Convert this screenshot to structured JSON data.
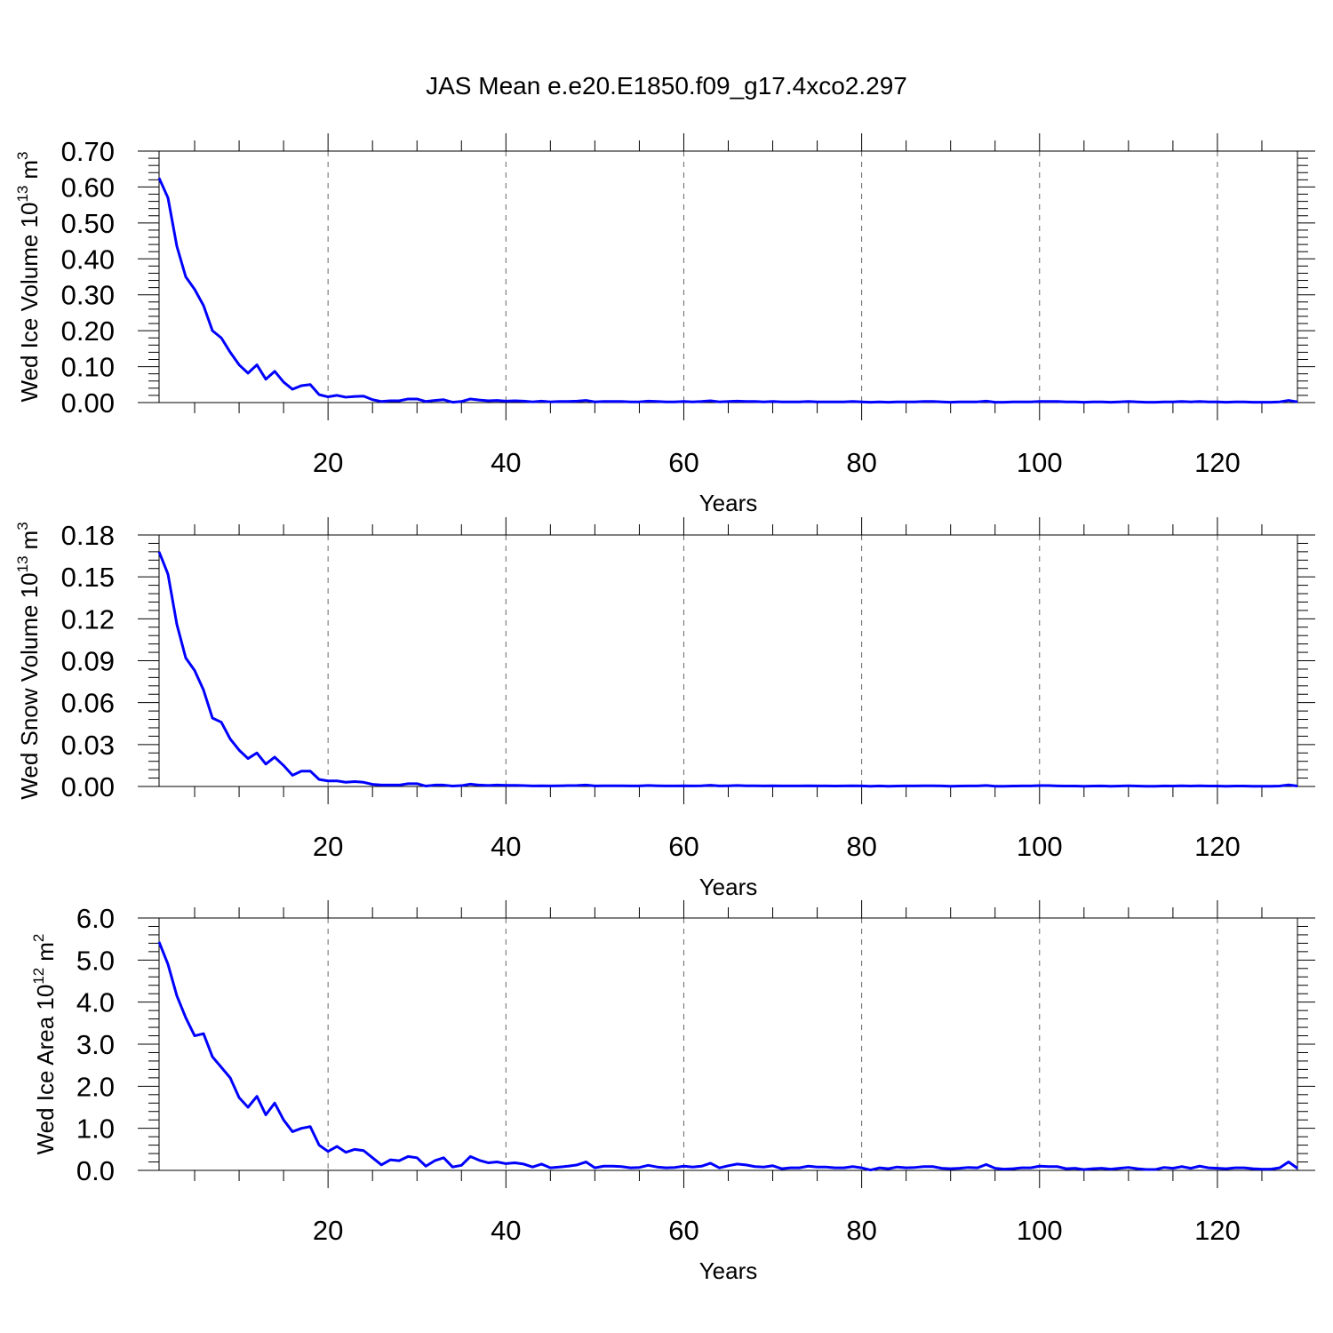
{
  "title": "JAS Mean e.e20.E1850.f09_g17.4xco2.297",
  "chart_data": [
    {
      "type": "line",
      "color": "#0000ff",
      "grid": true,
      "xlabel": "Years",
      "ylabel": {
        "text": "Wed Ice Volume 10",
        "exponent": "13",
        "unit": "m",
        "unit_exponent": "3"
      },
      "xlim": [
        1,
        129
      ],
      "xticks": [
        20,
        40,
        60,
        80,
        100,
        120
      ],
      "x_minor_per_major": 4,
      "ylim": [
        0,
        0.7
      ],
      "y_minor_per_major": 5,
      "yticks": [
        {
          "value": 0,
          "label": "0.00"
        },
        {
          "value": 0.1,
          "label": "0.10"
        },
        {
          "value": 0.2,
          "label": "0.20"
        },
        {
          "value": 0.3,
          "label": "0.30"
        },
        {
          "value": 0.4,
          "label": "0.40"
        },
        {
          "value": 0.5,
          "label": "0.50"
        },
        {
          "value": 0.6,
          "label": "0.60"
        },
        {
          "value": 0.7,
          "label": "0.70"
        }
      ],
      "x": [
        1,
        2,
        3,
        4,
        5,
        6,
        7,
        8,
        9,
        10,
        11,
        12,
        13,
        14,
        15,
        16,
        17,
        18,
        19,
        20,
        21,
        22,
        23,
        24,
        25,
        26,
        27,
        28,
        29,
        30,
        31,
        32,
        33,
        34,
        35,
        36,
        37,
        38,
        39,
        40,
        41,
        42,
        43,
        44,
        45,
        46,
        47,
        48,
        49,
        50,
        51,
        52,
        53,
        54,
        55,
        56,
        57,
        58,
        59,
        60,
        61,
        62,
        63,
        64,
        65,
        66,
        67,
        68,
        69,
        70,
        71,
        72,
        73,
        74,
        75,
        76,
        77,
        78,
        79,
        80,
        81,
        82,
        83,
        84,
        85,
        86,
        87,
        88,
        89,
        90,
        91,
        92,
        93,
        94,
        95,
        96,
        97,
        98,
        99,
        100,
        101,
        102,
        103,
        104,
        105,
        106,
        107,
        108,
        109,
        110,
        111,
        112,
        113,
        114,
        115,
        116,
        117,
        118,
        119,
        120,
        121,
        122,
        123,
        124,
        125,
        126,
        127,
        128,
        129
      ],
      "values": [
        0.625,
        0.57,
        0.435,
        0.35,
        0.315,
        0.27,
        0.2,
        0.18,
        0.14,
        0.105,
        0.082,
        0.105,
        0.065,
        0.087,
        0.057,
        0.037,
        0.047,
        0.05,
        0.022,
        0.016,
        0.02,
        0.015,
        0.017,
        0.018,
        0.008,
        0.003,
        0.005,
        0.005,
        0.01,
        0.01,
        0.003,
        0.006,
        0.008,
        0.001,
        0.003,
        0.01,
        0.007,
        0.005,
        0.006,
        0.004,
        0.005,
        0.004,
        0.002,
        0.004,
        0.002,
        0.003,
        0.003,
        0.004,
        0.006,
        0.002,
        0.003,
        0.003,
        0.003,
        0.002,
        0.002,
        0.004,
        0.003,
        0.002,
        0.002,
        0.003,
        0.002,
        0.003,
        0.005,
        0.002,
        0.003,
        0.004,
        0.003,
        0.003,
        0.002,
        0.003,
        0.002,
        0.002,
        0.002,
        0.003,
        0.002,
        0.002,
        0.002,
        0.002,
        0.003,
        0.002,
        0.001,
        0.002,
        0.001,
        0.002,
        0.002,
        0.002,
        0.003,
        0.003,
        0.002,
        0.001,
        0.002,
        0.002,
        0.002,
        0.004,
        0.001,
        0.001,
        0.002,
        0.002,
        0.002,
        0.003,
        0.003,
        0.003,
        0.002,
        0.002,
        0.001,
        0.002,
        0.002,
        0.001,
        0.002,
        0.003,
        0.002,
        0.001,
        0.001,
        0.002,
        0.002,
        0.003,
        0.002,
        0.003,
        0.002,
        0.002,
        0.001,
        0.002,
        0.002,
        0.001,
        0.001,
        0.001,
        0.002,
        0.006,
        0.002
      ]
    },
    {
      "type": "line",
      "color": "#0000ff",
      "grid": true,
      "xlabel": "Years",
      "ylabel": {
        "text": "Wed Snow Volume 10",
        "exponent": "13",
        "unit": "m",
        "unit_exponent": "3"
      },
      "xlim": [
        1,
        129
      ],
      "xticks": [
        20,
        40,
        60,
        80,
        100,
        120
      ],
      "x_minor_per_major": 4,
      "ylim": [
        0,
        0.18
      ],
      "y_minor_per_major": 5,
      "yticks": [
        {
          "value": 0,
          "label": "0.00"
        },
        {
          "value": 0.03,
          "label": "0.03"
        },
        {
          "value": 0.06,
          "label": "0.06"
        },
        {
          "value": 0.09,
          "label": "0.09"
        },
        {
          "value": 0.12,
          "label": "0.12"
        },
        {
          "value": 0.15,
          "label": "0.15"
        },
        {
          "value": 0.18,
          "label": "0.18"
        }
      ],
      "x": [
        1,
        2,
        3,
        4,
        5,
        6,
        7,
        8,
        9,
        10,
        11,
        12,
        13,
        14,
        15,
        16,
        17,
        18,
        19,
        20,
        21,
        22,
        23,
        24,
        25,
        26,
        27,
        28,
        29,
        30,
        31,
        32,
        33,
        34,
        35,
        36,
        37,
        38,
        39,
        40,
        41,
        42,
        43,
        44,
        45,
        46,
        47,
        48,
        49,
        50,
        51,
        52,
        53,
        54,
        55,
        56,
        57,
        58,
        59,
        60,
        61,
        62,
        63,
        64,
        65,
        66,
        67,
        68,
        69,
        70,
        71,
        72,
        73,
        74,
        75,
        76,
        77,
        78,
        79,
        80,
        81,
        82,
        83,
        84,
        85,
        86,
        87,
        88,
        89,
        90,
        91,
        92,
        93,
        94,
        95,
        96,
        97,
        98,
        99,
        100,
        101,
        102,
        103,
        104,
        105,
        106,
        107,
        108,
        109,
        110,
        111,
        112,
        113,
        114,
        115,
        116,
        117,
        118,
        119,
        120,
        121,
        122,
        123,
        124,
        125,
        126,
        127,
        128,
        129
      ],
      "values": [
        0.168,
        0.152,
        0.116,
        0.092,
        0.083,
        0.069,
        0.049,
        0.046,
        0.034,
        0.026,
        0.02,
        0.024,
        0.016,
        0.021,
        0.015,
        0.008,
        0.011,
        0.011,
        0.005,
        0.004,
        0.004,
        0.003,
        0.0035,
        0.003,
        0.0015,
        0.001,
        0.001,
        0.001,
        0.002,
        0.002,
        0.0003,
        0.001,
        0.001,
        0.0003,
        0.0006,
        0.0017,
        0.001,
        0.0007,
        0.001,
        0.0008,
        0.0008,
        0.0006,
        0.0004,
        0.0005,
        0.0004,
        0.0005,
        0.0006,
        0.0007,
        0.001,
        0.0004,
        0.0005,
        0.0005,
        0.0005,
        0.0004,
        0.0004,
        0.0007,
        0.0005,
        0.0004,
        0.0004,
        0.0005,
        0.0004,
        0.0005,
        0.0009,
        0.0004,
        0.0005,
        0.0007,
        0.0005,
        0.0005,
        0.0004,
        0.0005,
        0.0004,
        0.0004,
        0.0004,
        0.0005,
        0.0004,
        0.0004,
        0.0003,
        0.0004,
        0.0005,
        0.0004,
        0.0002,
        0.0004,
        0.0002,
        0.0003,
        0.0004,
        0.0004,
        0.0005,
        0.0005,
        0.0004,
        0.0002,
        0.0003,
        0.0004,
        0.0004,
        0.0007,
        0.0002,
        0.0002,
        0.0003,
        0.0004,
        0.0004,
        0.0006,
        0.0006,
        0.0004,
        0.0003,
        0.0003,
        0.0002,
        0.0003,
        0.0004,
        0.0002,
        0.0003,
        0.0005,
        0.0003,
        0.0002,
        0.0002,
        0.0004,
        0.0003,
        0.0005,
        0.0003,
        0.0005,
        0.0003,
        0.0003,
        0.0002,
        0.0003,
        0.0003,
        0.0002,
        0.0002,
        0.0002,
        0.0003,
        0.0011,
        0.0003
      ]
    },
    {
      "type": "line",
      "color": "#0000ff",
      "grid": true,
      "xlabel": "Years",
      "ylabel": {
        "text": "Wed Ice Area 10",
        "exponent": "12",
        "unit": "m",
        "unit_exponent": "2"
      },
      "xlim": [
        1,
        129
      ],
      "xticks": [
        20,
        40,
        60,
        80,
        100,
        120
      ],
      "x_minor_per_major": 4,
      "ylim": [
        0,
        6
      ],
      "y_minor_per_major": 5,
      "yticks": [
        {
          "value": 0,
          "label": "0.0"
        },
        {
          "value": 1,
          "label": "1.0"
        },
        {
          "value": 2,
          "label": "2.0"
        },
        {
          "value": 3,
          "label": "3.0"
        },
        {
          "value": 4,
          "label": "4.0"
        },
        {
          "value": 5,
          "label": "5.0"
        },
        {
          "value": 6,
          "label": "6.0"
        }
      ],
      "x": [
        1,
        2,
        3,
        4,
        5,
        6,
        7,
        8,
        9,
        10,
        11,
        12,
        13,
        14,
        15,
        16,
        17,
        18,
        19,
        20,
        21,
        22,
        23,
        24,
        25,
        26,
        27,
        28,
        29,
        30,
        31,
        32,
        33,
        34,
        35,
        36,
        37,
        38,
        39,
        40,
        41,
        42,
        43,
        44,
        45,
        46,
        47,
        48,
        49,
        50,
        51,
        52,
        53,
        54,
        55,
        56,
        57,
        58,
        59,
        60,
        61,
        62,
        63,
        64,
        65,
        66,
        67,
        68,
        69,
        70,
        71,
        72,
        73,
        74,
        75,
        76,
        77,
        78,
        79,
        80,
        81,
        82,
        83,
        84,
        85,
        86,
        87,
        88,
        89,
        90,
        91,
        92,
        93,
        94,
        95,
        96,
        97,
        98,
        99,
        100,
        101,
        102,
        103,
        104,
        105,
        106,
        107,
        108,
        109,
        110,
        111,
        112,
        113,
        114,
        115,
        116,
        117,
        118,
        119,
        120,
        121,
        122,
        123,
        124,
        125,
        126,
        127,
        128,
        129
      ],
      "values": [
        5.43,
        4.9,
        4.15,
        3.63,
        3.2,
        3.25,
        2.7,
        2.45,
        2.2,
        1.73,
        1.5,
        1.76,
        1.32,
        1.6,
        1.2,
        0.92,
        1.0,
        1.04,
        0.6,
        0.45,
        0.57,
        0.43,
        0.5,
        0.47,
        0.3,
        0.13,
        0.25,
        0.23,
        0.33,
        0.3,
        0.1,
        0.23,
        0.3,
        0.08,
        0.12,
        0.33,
        0.24,
        0.18,
        0.2,
        0.16,
        0.18,
        0.15,
        0.08,
        0.15,
        0.06,
        0.08,
        0.1,
        0.13,
        0.2,
        0.06,
        0.1,
        0.1,
        0.09,
        0.06,
        0.07,
        0.12,
        0.08,
        0.06,
        0.07,
        0.1,
        0.08,
        0.1,
        0.17,
        0.06,
        0.11,
        0.15,
        0.13,
        0.09,
        0.08,
        0.11,
        0.04,
        0.06,
        0.06,
        0.1,
        0.08,
        0.08,
        0.06,
        0.06,
        0.09,
        0.06,
        0.01,
        0.06,
        0.04,
        0.08,
        0.06,
        0.07,
        0.09,
        0.09,
        0.05,
        0.04,
        0.05,
        0.07,
        0.06,
        0.14,
        0.05,
        0.03,
        0.04,
        0.06,
        0.06,
        0.1,
        0.09,
        0.09,
        0.04,
        0.05,
        0.02,
        0.04,
        0.05,
        0.03,
        0.05,
        0.07,
        0.04,
        0.02,
        0.02,
        0.07,
        0.05,
        0.09,
        0.05,
        0.1,
        0.06,
        0.05,
        0.04,
        0.06,
        0.06,
        0.04,
        0.03,
        0.03,
        0.06,
        0.2,
        0.05
      ]
    }
  ]
}
